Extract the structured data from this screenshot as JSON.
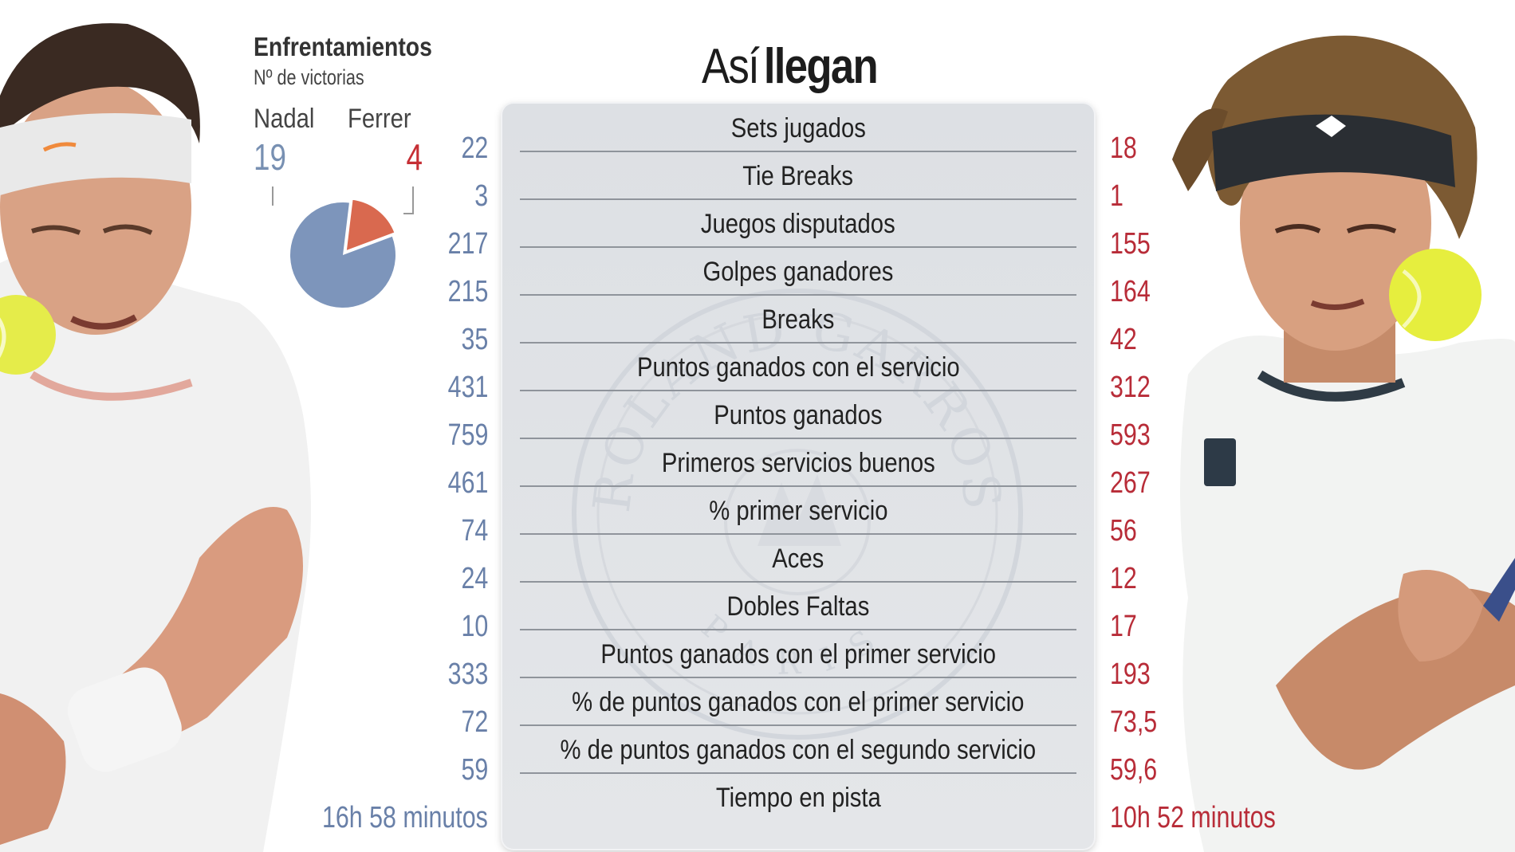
{
  "title": {
    "part1": "Así",
    "part2": "llegan"
  },
  "head_to_head": {
    "title": "Enfrentamientos",
    "subtitle": "Nº de victorias",
    "players": [
      {
        "name": "Nadal",
        "wins": "19",
        "color": "#7d95bb"
      },
      {
        "name": "Ferrer",
        "wins": "4",
        "color": "#d9694f"
      }
    ]
  },
  "chart_data": {
    "type": "pie",
    "title": "Enfrentamientos",
    "subtitle": "Nº de victorias",
    "slices": [
      {
        "label": "Nadal",
        "value": 19,
        "color": "#7d95bb"
      },
      {
        "label": "Ferrer",
        "value": 4,
        "color": "#d9694f"
      }
    ]
  },
  "colors": {
    "nadal": "#6980a8",
    "ferrer": "#b82c38",
    "board": "#e0e3e6"
  },
  "stats": [
    {
      "label": "Sets jugados",
      "nadal": "22",
      "ferrer": "18"
    },
    {
      "label": "Tie Breaks",
      "nadal": "3",
      "ferrer": "1"
    },
    {
      "label": "Juegos disputados",
      "nadal": "217",
      "ferrer": "155"
    },
    {
      "label": "Golpes ganadores",
      "nadal": "215",
      "ferrer": "164"
    },
    {
      "label": "Breaks",
      "nadal": "35",
      "ferrer": "42"
    },
    {
      "label": "Puntos ganados con el servicio",
      "nadal": "431",
      "ferrer": "312"
    },
    {
      "label": "Puntos ganados",
      "nadal": "759",
      "ferrer": "593"
    },
    {
      "label": "Primeros servicios buenos",
      "nadal": "461",
      "ferrer": "267"
    },
    {
      "label": "% primer servicio",
      "nadal": "74",
      "ferrer": "56"
    },
    {
      "label": "Aces",
      "nadal": "24",
      "ferrer": "12"
    },
    {
      "label": "Dobles Faltas",
      "nadal": "10",
      "ferrer": "17"
    },
    {
      "label": "Puntos ganados con el primer servicio",
      "nadal": "333",
      "ferrer": "193"
    },
    {
      "label": "% de puntos ganados con el primer servicio",
      "nadal": "72",
      "ferrer": "73,5"
    },
    {
      "label": "% de puntos ganados con el segundo servicio",
      "nadal": "59",
      "ferrer": "59,6"
    },
    {
      "label": "Tiempo en pista",
      "nadal": "16h 58 minutos",
      "ferrer": "10h 52 minutos"
    }
  ],
  "watermark": {
    "top": "ROLAND GARROS",
    "bottom": "PARIS"
  }
}
